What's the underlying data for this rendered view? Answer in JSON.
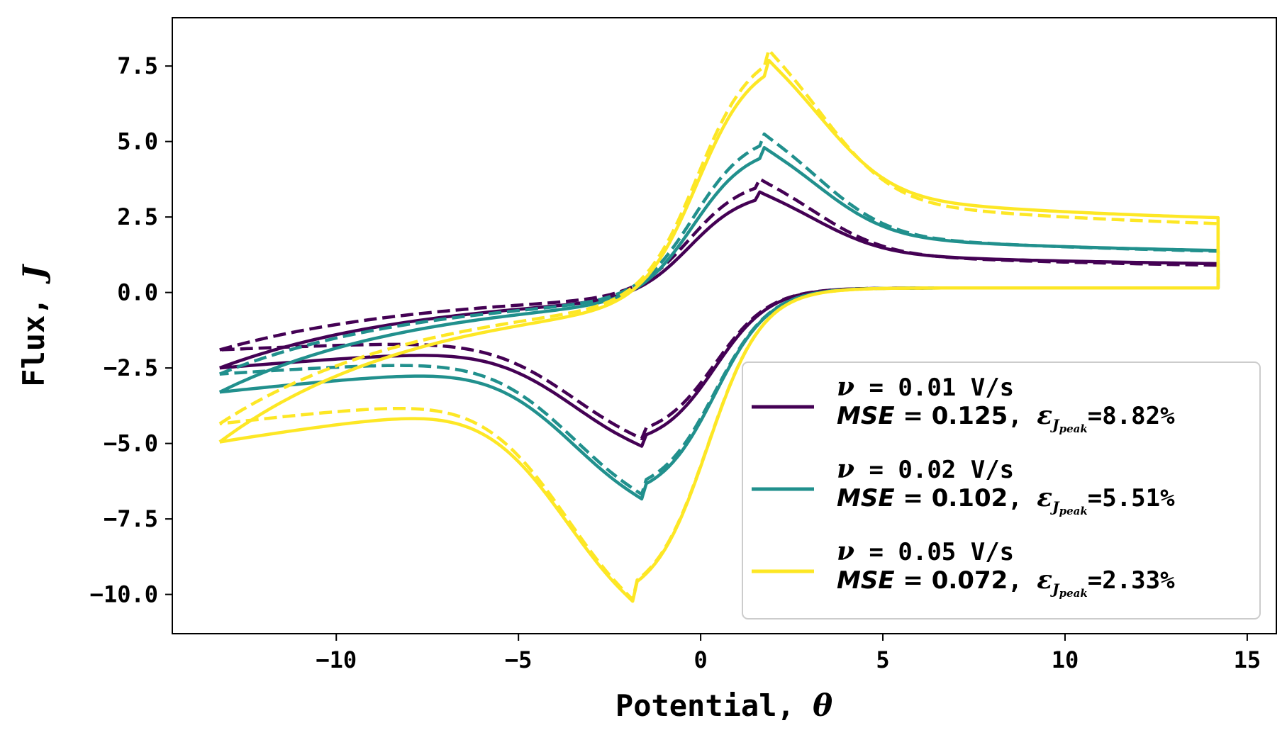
{
  "chart_data": {
    "type": "line",
    "title": "",
    "xlabel_text": "Potential, ",
    "xlabel_symbol": "θ",
    "ylabel_text": "Flux, ",
    "ylabel_symbol": "J",
    "xlim": [
      -14.5,
      15.8
    ],
    "ylim": [
      -11.3,
      9.1
    ],
    "xticks": [
      -10,
      -5,
      0,
      5,
      10,
      15
    ],
    "xtick_labels": [
      "−10",
      "−5",
      "0",
      "5",
      "10",
      "15"
    ],
    "yticks": [
      -10,
      -7.5,
      -5,
      -2.5,
      0,
      2.5,
      5,
      7.5
    ],
    "ytick_labels": [
      "−10.0",
      "−7.5",
      "−5.0",
      "−2.5",
      "0.0",
      "2.5",
      "5.0",
      "7.5"
    ],
    "grid": false,
    "legend_position": "lower-right",
    "x_range_data": [
      -13.2,
      14.2
    ],
    "series": [
      {
        "scan_rate_label": "ν = 0.01 V/s",
        "nu": "0.01 V/s",
        "mse": "0.125",
        "err": "=8.82%",
        "color": "#440154",
        "solid": {
          "Jstart": -2.5,
          "Jend": 0.72,
          "peakOx": 3.35,
          "peakOxPos": 1.6,
          "peakRed": -5.1,
          "peakRedPos": -1.6
        },
        "dashed": {
          "Jstart": -1.9,
          "Jend": 0.62,
          "peakOx": 3.78,
          "peakOxPos": 1.6,
          "peakRed": -4.85,
          "peakRedPos": -1.6
        }
      },
      {
        "scan_rate_label": "ν = 0.02 V/s",
        "nu": "0.02 V/s",
        "mse": "0.102",
        "err": "=5.51%",
        "color": "#21908d",
        "solid": {
          "Jstart": -3.3,
          "Jend": 1.05,
          "peakOx": 4.85,
          "peakOxPos": 1.7,
          "peakRed": -6.85,
          "peakRedPos": -1.6
        },
        "dashed": {
          "Jstart": -2.7,
          "Jend": 0.98,
          "peakOx": 5.3,
          "peakOxPos": 1.7,
          "peakRed": -6.7,
          "peakRedPos": -1.6
        }
      },
      {
        "scan_rate_label": "ν = 0.05 V/s",
        "nu": "0.05 V/s",
        "mse": "0.072",
        "err": "=2.33%",
        "color": "#fde725",
        "solid": {
          "Jstart": -4.95,
          "Jend": 1.95,
          "peakOx": 7.8,
          "peakOxPos": 1.8,
          "peakRed": -10.3,
          "peakRedPos": -1.8
        },
        "dashed": {
          "Jstart": -4.35,
          "Jend": 1.7,
          "peakOx": 8.15,
          "peakOxPos": 1.8,
          "peakRed": -10.25,
          "peakRedPos": -1.8
        }
      }
    ]
  }
}
